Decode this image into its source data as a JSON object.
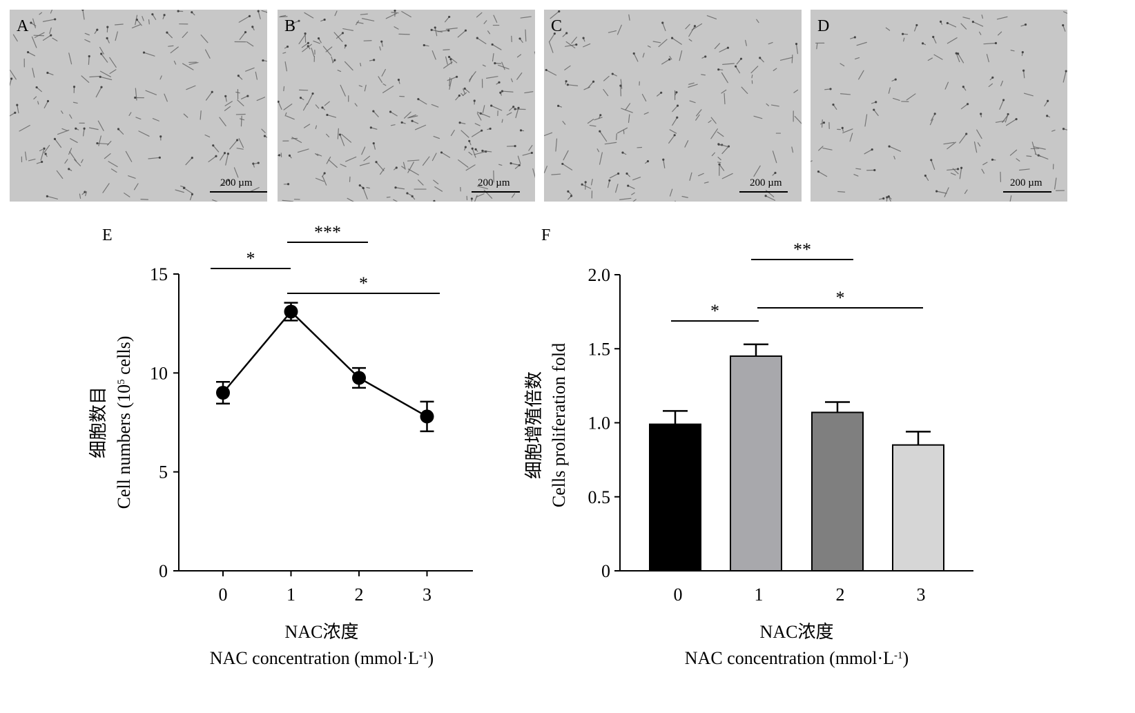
{
  "micrographs": [
    {
      "letter": "A",
      "scale_label": "200 µm"
    },
    {
      "letter": "B",
      "scale_label": "200 µm"
    },
    {
      "letter": "C",
      "scale_label": "200 µm"
    },
    {
      "letter": "D",
      "scale_label": "200 µm"
    }
  ],
  "colors": {
    "photo_bg": "#c7c7c7",
    "cell": "#5a5a5a",
    "axis": "#000000"
  },
  "chart_data": [
    {
      "panel": "E",
      "type": "line",
      "x": [
        0,
        1,
        2,
        3
      ],
      "y": [
        9.0,
        13.1,
        9.75,
        7.8
      ],
      "error": [
        0.55,
        0.45,
        0.5,
        0.75
      ],
      "ylabel_cn": "细胞数目",
      "ylabel_en": "Cell numbers (10",
      "ylabel_sup": "5",
      "ylabel_tail": " cells)",
      "xlabel_cn": "NAC浓度",
      "xlabel_en": "NAC concentration (mmol·L",
      "xlabel_sup": "-1",
      "xlabel_tail": ")",
      "ylim": [
        0,
        15
      ],
      "yticks": [
        "0",
        "5",
        "10",
        "15"
      ],
      "xticks": [
        "0",
        "1",
        "2",
        "3"
      ],
      "significance": [
        {
          "from": 0,
          "to": 1,
          "label": "*"
        },
        {
          "from": 1,
          "to": 2,
          "label": "***"
        },
        {
          "from": 1,
          "to": 3,
          "label": "*"
        }
      ]
    },
    {
      "panel": "F",
      "type": "bar",
      "categories": [
        "0",
        "1",
        "2",
        "3"
      ],
      "values": [
        0.99,
        1.45,
        1.07,
        0.85
      ],
      "error": [
        0.09,
        0.08,
        0.07,
        0.09
      ],
      "bar_colors": [
        "#000000",
        "#a8a8ac",
        "#7f7f7f",
        "#d6d6d6"
      ],
      "ylabel_cn": "细胞增殖倍数",
      "ylabel_en": "Cells proliferation fold",
      "xlabel_cn": "NAC浓度",
      "xlabel_en": "NAC concentration (mmol·L",
      "xlabel_sup": "-1",
      "xlabel_tail": ")",
      "ylim": [
        0,
        2.0
      ],
      "yticks": [
        "0",
        "0.5",
        "1.0",
        "1.5",
        "2.0"
      ],
      "significance": [
        {
          "from": 0,
          "to": 1,
          "label": "*"
        },
        {
          "from": 1,
          "to": 2,
          "label": "**"
        },
        {
          "from": 1,
          "to": 3,
          "label": "*"
        }
      ]
    }
  ]
}
